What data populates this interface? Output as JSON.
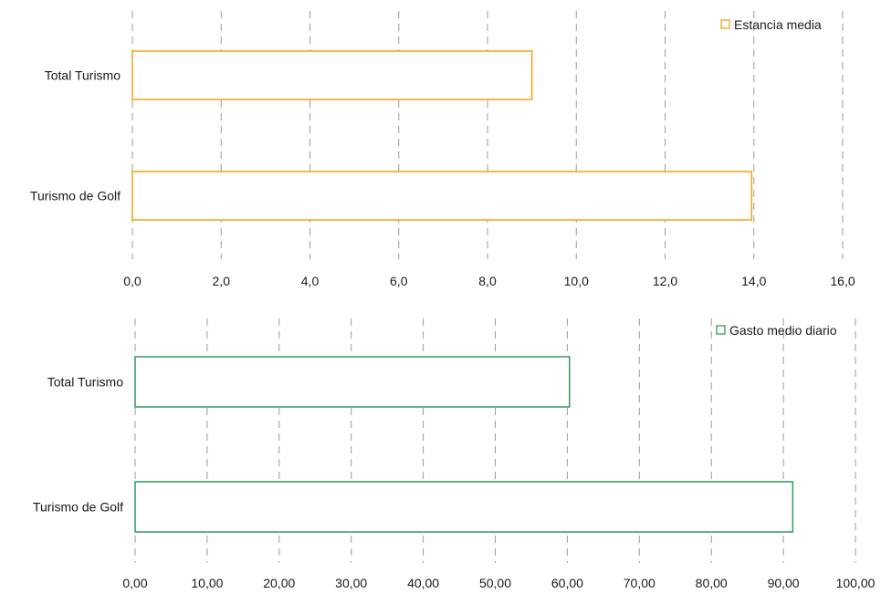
{
  "chart_data": [
    {
      "type": "bar",
      "orientation": "horizontal",
      "categories": [
        "Total Turismo",
        "Turismo de Golf"
      ],
      "series": [
        {
          "name": "Estancia media",
          "values": [
            9.0,
            13.95
          ],
          "color": "#f2a413"
        }
      ],
      "xlim": [
        0,
        16
      ],
      "xticks": [
        "0,0",
        "2,0",
        "4,0",
        "6,0",
        "8,0",
        "10,0",
        "12,0",
        "14,0",
        "16,0"
      ],
      "grid": "vertical-dashed",
      "legend_position": "top-right"
    },
    {
      "type": "bar",
      "orientation": "horizontal",
      "categories": [
        "Total Turismo",
        "Turismo de Golf"
      ],
      "series": [
        {
          "name": "Gasto medio diario",
          "values": [
            60.3,
            91.3
          ],
          "color": "#2e9a5c"
        }
      ],
      "xlim": [
        0,
        100
      ],
      "xticks": [
        "0,00",
        "10,00",
        "20,00",
        "30,00",
        "40,00",
        "50,00",
        "60,00",
        "70,00",
        "80,00",
        "90,00",
        "100,00"
      ],
      "grid": "vertical-dashed",
      "legend_position": "top-right"
    }
  ]
}
